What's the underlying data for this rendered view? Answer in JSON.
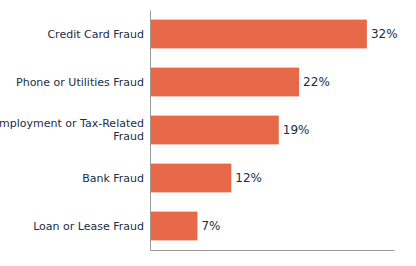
{
  "chart_data": {
    "type": "bar",
    "orientation": "horizontal",
    "categories": [
      "Loan or Lease Fraud",
      "Bank Fraud",
      "Employment or Tax-Related\nFraud",
      "Phone or Utilities Fraud",
      "Credit Card Fraud"
    ],
    "values": [
      7,
      12,
      19,
      22,
      32
    ],
    "value_labels": [
      "7%",
      "12%",
      "19%",
      "22%",
      "32%"
    ],
    "color": "#e8694a",
    "xlim": [
      0,
      36
    ],
    "data_labels": true,
    "tick_labels": "y",
    "grid": false
  }
}
